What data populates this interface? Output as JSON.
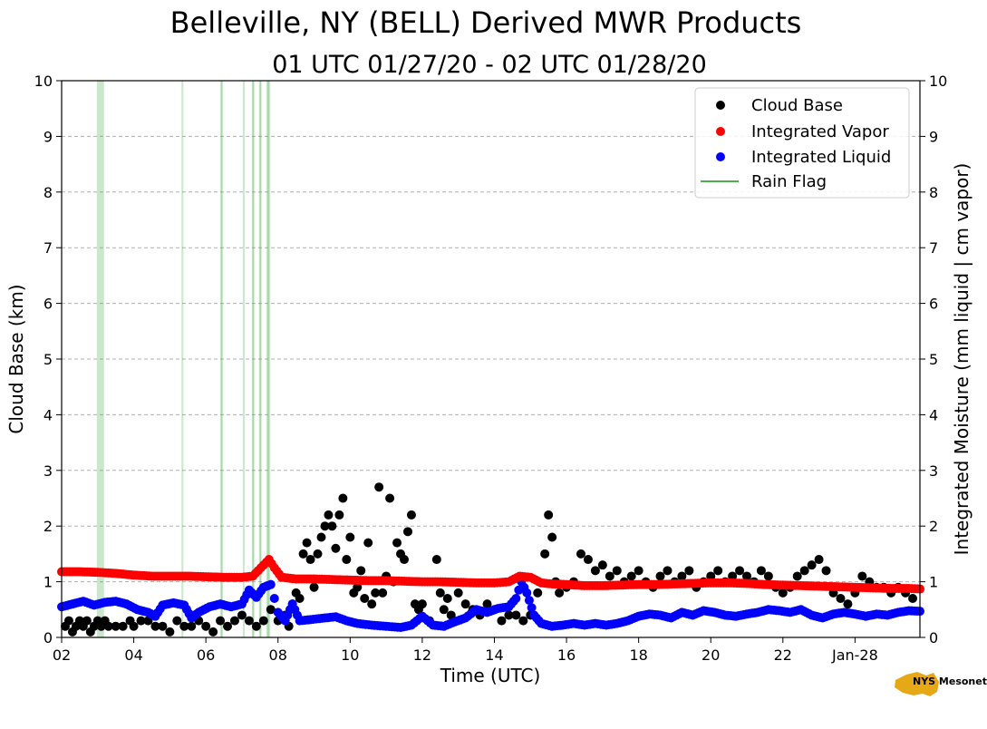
{
  "chart_data": {
    "type": "scatter",
    "title": "Belleville, NY (BELL) Derived MWR Products",
    "subtitle": "01 UTC 01/27/20 - 02 UTC 01/28/20",
    "xlabel": "Time (UTC)",
    "ylabel": "Cloud Base (km)",
    "y2label": "Integrated Moisture (mm liquid | cm vapor)",
    "xlim": [
      2,
      25.8
    ],
    "ylim": [
      0,
      10
    ],
    "y2lim": [
      0,
      10
    ],
    "x_ticks": [
      {
        "x": 2,
        "label": "02"
      },
      {
        "x": 4,
        "label": "04"
      },
      {
        "x": 6,
        "label": "06"
      },
      {
        "x": 8,
        "label": "08"
      },
      {
        "x": 10,
        "label": "10"
      },
      {
        "x": 12,
        "label": "12"
      },
      {
        "x": 14,
        "label": "14"
      },
      {
        "x": 16,
        "label": "16"
      },
      {
        "x": 18,
        "label": "18"
      },
      {
        "x": 20,
        "label": "20"
      },
      {
        "x": 22,
        "label": "22"
      },
      {
        "x": 24,
        "label": "Jan-28"
      }
    ],
    "y_ticks": [
      "0",
      "1",
      "2",
      "3",
      "4",
      "5",
      "6",
      "7",
      "8",
      "9",
      "10"
    ],
    "grid": "horizontal dashed",
    "legend_position": "top-right",
    "legend": [
      {
        "label": "Cloud Base",
        "color": "#000000",
        "marker": "dot"
      },
      {
        "label": "Integrated Vapor",
        "color": "#ff0000",
        "marker": "dot"
      },
      {
        "label": "Integrated Liquid",
        "color": "#0000ff",
        "marker": "dot"
      },
      {
        "label": "Rain Flag",
        "color": "#4caf50",
        "marker": "line"
      }
    ],
    "rain_flag_hours": [
      3.0,
      3.05,
      3.1,
      3.15,
      5.35,
      6.42,
      6.45,
      7.05,
      7.3,
      7.32,
      7.5,
      7.52,
      7.7,
      7.73,
      7.76
    ],
    "series": [
      {
        "name": "Cloud Base",
        "color": "#000000",
        "points": [
          [
            2.1,
            0.2
          ],
          [
            2.2,
            0.3
          ],
          [
            2.3,
            0.1
          ],
          [
            2.4,
            0.2
          ],
          [
            2.5,
            0.3
          ],
          [
            2.6,
            0.2
          ],
          [
            2.7,
            0.3
          ],
          [
            2.8,
            0.1
          ],
          [
            2.9,
            0.2
          ],
          [
            3.0,
            0.3
          ],
          [
            3.1,
            0.2
          ],
          [
            3.2,
            0.3
          ],
          [
            3.3,
            0.2
          ],
          [
            3.5,
            0.2
          ],
          [
            3.7,
            0.2
          ],
          [
            3.9,
            0.3
          ],
          [
            4.0,
            0.2
          ],
          [
            4.2,
            0.3
          ],
          [
            4.4,
            0.3
          ],
          [
            4.6,
            0.2
          ],
          [
            4.8,
            0.2
          ],
          [
            5.0,
            0.1
          ],
          [
            5.2,
            0.3
          ],
          [
            5.4,
            0.2
          ],
          [
            5.6,
            0.2
          ],
          [
            5.8,
            0.3
          ],
          [
            6.0,
            0.2
          ],
          [
            6.2,
            0.1
          ],
          [
            6.4,
            0.3
          ],
          [
            6.6,
            0.2
          ],
          [
            6.8,
            0.3
          ],
          [
            7.0,
            0.4
          ],
          [
            7.2,
            0.3
          ],
          [
            7.4,
            0.2
          ],
          [
            7.6,
            0.3
          ],
          [
            7.8,
            0.5
          ],
          [
            8.0,
            0.3
          ],
          [
            8.2,
            0.4
          ],
          [
            8.3,
            0.2
          ],
          [
            8.4,
            0.6
          ],
          [
            8.5,
            0.8
          ],
          [
            8.6,
            0.7
          ],
          [
            8.7,
            1.5
          ],
          [
            8.8,
            1.7
          ],
          [
            8.9,
            1.4
          ],
          [
            9.0,
            0.9
          ],
          [
            9.1,
            1.5
          ],
          [
            9.2,
            1.8
          ],
          [
            9.3,
            2.0
          ],
          [
            9.4,
            2.2
          ],
          [
            9.5,
            2.0
          ],
          [
            9.6,
            1.6
          ],
          [
            9.7,
            2.2
          ],
          [
            9.8,
            2.5
          ],
          [
            9.9,
            1.4
          ],
          [
            10.0,
            1.8
          ],
          [
            10.1,
            0.8
          ],
          [
            10.2,
            0.9
          ],
          [
            10.3,
            1.2
          ],
          [
            10.4,
            0.7
          ],
          [
            10.5,
            1.7
          ],
          [
            10.6,
            0.6
          ],
          [
            10.7,
            0.8
          ],
          [
            10.8,
            2.7
          ],
          [
            10.9,
            0.8
          ],
          [
            11.0,
            1.1
          ],
          [
            11.1,
            2.5
          ],
          [
            11.2,
            1.0
          ],
          [
            11.3,
            1.7
          ],
          [
            11.4,
            1.5
          ],
          [
            11.5,
            1.4
          ],
          [
            11.6,
            1.9
          ],
          [
            11.7,
            2.2
          ],
          [
            11.8,
            0.6
          ],
          [
            11.9,
            0.5
          ],
          [
            12.0,
            0.6
          ],
          [
            12.2,
            0.3
          ],
          [
            12.4,
            1.4
          ],
          [
            12.5,
            0.8
          ],
          [
            12.6,
            0.5
          ],
          [
            12.7,
            0.7
          ],
          [
            12.8,
            0.4
          ],
          [
            13.0,
            0.8
          ],
          [
            13.2,
            0.6
          ],
          [
            13.4,
            0.5
          ],
          [
            13.6,
            0.4
          ],
          [
            13.8,
            0.6
          ],
          [
            14.0,
            0.5
          ],
          [
            14.2,
            0.3
          ],
          [
            14.4,
            0.4
          ],
          [
            14.6,
            0.4
          ],
          [
            14.8,
            0.3
          ],
          [
            15.0,
            0.4
          ],
          [
            15.2,
            0.8
          ],
          [
            15.4,
            1.5
          ],
          [
            15.5,
            2.2
          ],
          [
            15.6,
            1.8
          ],
          [
            15.7,
            1.0
          ],
          [
            15.8,
            0.8
          ],
          [
            16.0,
            0.9
          ],
          [
            16.2,
            1.0
          ],
          [
            16.4,
            1.5
          ],
          [
            16.6,
            1.4
          ],
          [
            16.8,
            1.2
          ],
          [
            17.0,
            1.3
          ],
          [
            17.2,
            1.1
          ],
          [
            17.4,
            1.2
          ],
          [
            17.6,
            1.0
          ],
          [
            17.8,
            1.1
          ],
          [
            18.0,
            1.2
          ],
          [
            18.2,
            1.0
          ],
          [
            18.4,
            0.9
          ],
          [
            18.6,
            1.1
          ],
          [
            18.8,
            1.2
          ],
          [
            19.0,
            1.0
          ],
          [
            19.2,
            1.1
          ],
          [
            19.4,
            1.2
          ],
          [
            19.6,
            0.9
          ],
          [
            19.8,
            1.0
          ],
          [
            20.0,
            1.1
          ],
          [
            20.2,
            1.2
          ],
          [
            20.4,
            1.0
          ],
          [
            20.6,
            1.1
          ],
          [
            20.8,
            1.2
          ],
          [
            21.0,
            1.1
          ],
          [
            21.2,
            1.0
          ],
          [
            21.4,
            1.2
          ],
          [
            21.6,
            1.1
          ],
          [
            21.8,
            0.9
          ],
          [
            22.0,
            0.8
          ],
          [
            22.2,
            0.9
          ],
          [
            22.4,
            1.1
          ],
          [
            22.6,
            1.2
          ],
          [
            22.8,
            1.3
          ],
          [
            23.0,
            1.4
          ],
          [
            23.2,
            1.2
          ],
          [
            23.4,
            0.8
          ],
          [
            23.6,
            0.7
          ],
          [
            23.8,
            0.6
          ],
          [
            24.0,
            0.8
          ],
          [
            24.2,
            1.1
          ],
          [
            24.4,
            1.0
          ],
          [
            24.6,
            0.9
          ],
          [
            24.8,
            0.9
          ],
          [
            25.0,
            0.8
          ],
          [
            25.2,
            0.9
          ],
          [
            25.4,
            0.8
          ],
          [
            25.6,
            0.7
          ]
        ]
      },
      {
        "name": "Integrated Vapor",
        "color": "#ff0000",
        "points": [
          [
            2.0,
            1.18
          ],
          [
            2.5,
            1.18
          ],
          [
            3.0,
            1.17
          ],
          [
            3.5,
            1.15
          ],
          [
            4.0,
            1.12
          ],
          [
            4.5,
            1.1
          ],
          [
            5.0,
            1.1
          ],
          [
            5.5,
            1.1
          ],
          [
            6.0,
            1.09
          ],
          [
            6.5,
            1.08
          ],
          [
            7.0,
            1.08
          ],
          [
            7.3,
            1.1
          ],
          [
            7.6,
            1.3
          ],
          [
            7.75,
            1.4
          ],
          [
            7.9,
            1.25
          ],
          [
            8.1,
            1.08
          ],
          [
            8.5,
            1.05
          ],
          [
            9.0,
            1.05
          ],
          [
            9.5,
            1.04
          ],
          [
            10.0,
            1.03
          ],
          [
            10.5,
            1.02
          ],
          [
            11.0,
            1.02
          ],
          [
            11.5,
            1.01
          ],
          [
            12.0,
            1.0
          ],
          [
            12.5,
            1.0
          ],
          [
            13.0,
            0.99
          ],
          [
            13.5,
            0.98
          ],
          [
            14.0,
            0.98
          ],
          [
            14.4,
            1.0
          ],
          [
            14.7,
            1.1
          ],
          [
            15.0,
            1.08
          ],
          [
            15.3,
            0.98
          ],
          [
            15.6,
            0.96
          ],
          [
            16.0,
            0.95
          ],
          [
            16.5,
            0.93
          ],
          [
            17.0,
            0.93
          ],
          [
            17.5,
            0.94
          ],
          [
            18.0,
            0.95
          ],
          [
            18.5,
            0.95
          ],
          [
            19.0,
            0.96
          ],
          [
            19.5,
            0.97
          ],
          [
            20.0,
            0.98
          ],
          [
            20.5,
            0.98
          ],
          [
            21.0,
            0.97
          ],
          [
            21.5,
            0.95
          ],
          [
            22.0,
            0.94
          ],
          [
            22.5,
            0.93
          ],
          [
            23.0,
            0.92
          ],
          [
            23.5,
            0.91
          ],
          [
            24.0,
            0.9
          ],
          [
            24.5,
            0.89
          ],
          [
            25.0,
            0.88
          ],
          [
            25.5,
            0.88
          ],
          [
            25.8,
            0.87
          ]
        ]
      },
      {
        "name": "Integrated Liquid",
        "color": "#0000ff",
        "points": [
          [
            2.0,
            0.55
          ],
          [
            2.3,
            0.6
          ],
          [
            2.6,
            0.65
          ],
          [
            2.9,
            0.58
          ],
          [
            3.2,
            0.63
          ],
          [
            3.5,
            0.65
          ],
          [
            3.8,
            0.6
          ],
          [
            4.1,
            0.5
          ],
          [
            4.4,
            0.45
          ],
          [
            4.6,
            0.38
          ],
          [
            4.8,
            0.58
          ],
          [
            5.1,
            0.62
          ],
          [
            5.4,
            0.58
          ],
          [
            5.6,
            0.35
          ],
          [
            5.8,
            0.45
          ],
          [
            6.1,
            0.55
          ],
          [
            6.4,
            0.6
          ],
          [
            6.7,
            0.55
          ],
          [
            7.0,
            0.6
          ],
          [
            7.2,
            0.85
          ],
          [
            7.4,
            0.72
          ],
          [
            7.6,
            0.9
          ],
          [
            7.8,
            0.95
          ],
          [
            7.9,
            0.7
          ],
          [
            8.0,
            0.45
          ],
          [
            8.2,
            0.3
          ],
          [
            8.4,
            0.6
          ],
          [
            8.6,
            0.3
          ],
          [
            8.9,
            0.32
          ],
          [
            9.3,
            0.35
          ],
          [
            9.6,
            0.37
          ],
          [
            9.9,
            0.3
          ],
          [
            10.2,
            0.25
          ],
          [
            10.6,
            0.22
          ],
          [
            11.0,
            0.2
          ],
          [
            11.4,
            0.18
          ],
          [
            11.7,
            0.22
          ],
          [
            12.0,
            0.38
          ],
          [
            12.3,
            0.22
          ],
          [
            12.6,
            0.2
          ],
          [
            12.9,
            0.28
          ],
          [
            13.2,
            0.35
          ],
          [
            13.5,
            0.5
          ],
          [
            13.8,
            0.45
          ],
          [
            14.1,
            0.52
          ],
          [
            14.4,
            0.55
          ],
          [
            14.6,
            0.7
          ],
          [
            14.75,
            1.0
          ],
          [
            14.9,
            0.8
          ],
          [
            15.1,
            0.4
          ],
          [
            15.3,
            0.25
          ],
          [
            15.6,
            0.2
          ],
          [
            15.9,
            0.22
          ],
          [
            16.2,
            0.25
          ],
          [
            16.5,
            0.22
          ],
          [
            16.8,
            0.25
          ],
          [
            17.1,
            0.22
          ],
          [
            17.4,
            0.25
          ],
          [
            17.7,
            0.3
          ],
          [
            18.0,
            0.38
          ],
          [
            18.3,
            0.42
          ],
          [
            18.6,
            0.4
          ],
          [
            18.9,
            0.35
          ],
          [
            19.2,
            0.45
          ],
          [
            19.5,
            0.4
          ],
          [
            19.8,
            0.48
          ],
          [
            20.1,
            0.45
          ],
          [
            20.4,
            0.4
          ],
          [
            20.7,
            0.38
          ],
          [
            21.0,
            0.42
          ],
          [
            21.3,
            0.45
          ],
          [
            21.6,
            0.5
          ],
          [
            21.9,
            0.48
          ],
          [
            22.2,
            0.45
          ],
          [
            22.5,
            0.5
          ],
          [
            22.8,
            0.4
          ],
          [
            23.1,
            0.35
          ],
          [
            23.4,
            0.42
          ],
          [
            23.7,
            0.45
          ],
          [
            24.0,
            0.42
          ],
          [
            24.3,
            0.38
          ],
          [
            24.6,
            0.42
          ],
          [
            24.9,
            0.4
          ],
          [
            25.2,
            0.45
          ],
          [
            25.5,
            0.48
          ],
          [
            25.8,
            0.47
          ]
        ]
      }
    ]
  },
  "logo": {
    "text": "NYS Mesonet",
    "brand_color": "#e6a817",
    "text_color": "#4b2e83"
  }
}
